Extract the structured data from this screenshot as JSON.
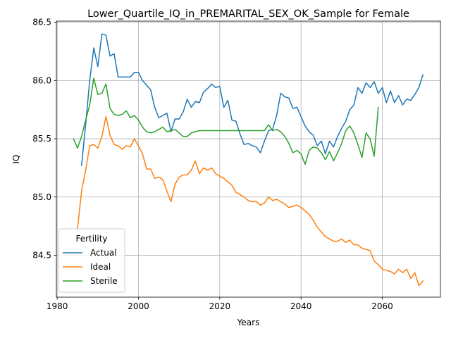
{
  "chart_data": {
    "type": "line",
    "title": "Lower_Quartile_IQ_in_PREMARITAL_SEX_OK_Sample for Female",
    "xlabel": "Years",
    "ylabel": "IQ",
    "xlim": [
      1979.8,
      2074.3
    ],
    "ylim": [
      84.14,
      86.51
    ],
    "xticks": [
      1980,
      2000,
      2020,
      2040,
      2060
    ],
    "yticks": [
      84.5,
      85.0,
      85.5,
      86.0,
      86.5
    ],
    "ytick_labels": [
      "84.5",
      "85.0",
      "85.5",
      "86.0",
      "86.5"
    ],
    "grid": true,
    "legend": {
      "title": "Fertility",
      "placement": "lower-left"
    },
    "series": [
      {
        "name": "Actual",
        "color": "#1f77b4",
        "x": [
          1986,
          1987,
          1988,
          1989,
          1990,
          1991,
          1992,
          1993,
          1994,
          1995,
          1996,
          1997,
          1998,
          1999,
          2000,
          2001,
          2002,
          2003,
          2004,
          2005,
          2006,
          2007,
          2008,
          2009,
          2010,
          2011,
          2012,
          2013,
          2014,
          2015,
          2016,
          2017,
          2018,
          2019,
          2020,
          2021,
          2022,
          2023,
          2024,
          2025,
          2026,
          2027,
          2028,
          2029,
          2030,
          2031,
          2032,
          2033,
          2034,
          2035,
          2036,
          2037,
          2038,
          2039,
          2040,
          2041,
          2042,
          2043,
          2044,
          2045,
          2046,
          2047,
          2048,
          2049,
          2050,
          2051,
          2052,
          2053,
          2054,
          2055,
          2056,
          2057,
          2058,
          2059,
          2060,
          2061,
          2062,
          2063,
          2064,
          2065,
          2066,
          2067,
          2068,
          2069,
          2070
        ],
        "y": [
          85.27,
          85.62,
          86.0,
          86.28,
          86.12,
          86.4,
          86.39,
          86.21,
          86.23,
          86.03,
          86.03,
          86.03,
          86.03,
          86.07,
          86.07,
          86.0,
          85.96,
          85.92,
          85.77,
          85.68,
          85.7,
          85.72,
          85.56,
          85.67,
          85.67,
          85.73,
          85.84,
          85.77,
          85.82,
          85.81,
          85.9,
          85.93,
          85.97,
          85.94,
          85.95,
          85.77,
          85.83,
          85.66,
          85.65,
          85.54,
          85.45,
          85.46,
          85.44,
          85.43,
          85.38,
          85.48,
          85.57,
          85.58,
          85.7,
          85.89,
          85.86,
          85.85,
          85.76,
          85.77,
          85.69,
          85.61,
          85.56,
          85.53,
          85.44,
          85.48,
          85.37,
          85.48,
          85.43,
          85.52,
          85.59,
          85.65,
          85.75,
          85.79,
          85.94,
          85.89,
          85.98,
          85.94,
          85.99,
          85.89,
          85.94,
          85.81,
          85.91,
          85.81,
          85.87,
          85.79,
          85.84,
          85.83,
          85.88,
          85.94,
          86.05
        ]
      },
      {
        "name": "Ideal",
        "color": "#ff7f0e",
        "x": [
          1985,
          1986,
          1987,
          1988,
          1989,
          1990,
          1991,
          1992,
          1993,
          1994,
          1995,
          1996,
          1997,
          1998,
          1999,
          2000,
          2001,
          2002,
          2003,
          2004,
          2005,
          2006,
          2007,
          2008,
          2009,
          2010,
          2011,
          2012,
          2013,
          2014,
          2015,
          2016,
          2017,
          2018,
          2019,
          2020,
          2021,
          2022,
          2023,
          2024,
          2025,
          2026,
          2027,
          2028,
          2029,
          2030,
          2031,
          2032,
          2033,
          2034,
          2035,
          2036,
          2037,
          2038,
          2039,
          2040,
          2041,
          2042,
          2043,
          2044,
          2045,
          2046,
          2047,
          2048,
          2049,
          2050,
          2051,
          2052,
          2053,
          2054,
          2055,
          2056,
          2057,
          2058,
          2059,
          2060,
          2061,
          2062,
          2063,
          2064,
          2065,
          2066,
          2067,
          2068,
          2069,
          2070
        ],
        "y": [
          84.73,
          85.05,
          85.23,
          85.44,
          85.45,
          85.42,
          85.52,
          85.69,
          85.53,
          85.45,
          85.44,
          85.41,
          85.44,
          85.43,
          85.5,
          85.44,
          85.37,
          85.24,
          85.24,
          85.16,
          85.17,
          85.15,
          85.05,
          84.96,
          85.11,
          85.17,
          85.19,
          85.19,
          85.23,
          85.31,
          85.2,
          85.25,
          85.23,
          85.25,
          85.2,
          85.18,
          85.16,
          85.13,
          85.1,
          85.04,
          85.02,
          85.0,
          84.97,
          84.96,
          84.96,
          84.93,
          84.95,
          85.0,
          84.97,
          84.98,
          84.96,
          84.94,
          84.91,
          84.92,
          84.93,
          84.91,
          84.88,
          84.85,
          84.8,
          84.74,
          84.7,
          84.66,
          84.64,
          84.62,
          84.62,
          84.64,
          84.61,
          84.63,
          84.59,
          84.59,
          84.56,
          84.55,
          84.54,
          84.45,
          84.42,
          84.38,
          84.37,
          84.36,
          84.34,
          84.38,
          84.35,
          84.38,
          84.3,
          84.35,
          84.24,
          84.28
        ]
      },
      {
        "name": "Sterile",
        "color": "#2ca02c",
        "x": [
          1984,
          1985,
          1986,
          1987,
          1988,
          1989,
          1990,
          1991,
          1992,
          1993,
          1994,
          1995,
          1996,
          1997,
          1998,
          1999,
          2000,
          2001,
          2002,
          2003,
          2004,
          2005,
          2006,
          2007,
          2008,
          2009,
          2010,
          2011,
          2012,
          2013,
          2014,
          2015,
          2016,
          2017,
          2018,
          2019,
          2020,
          2021,
          2022,
          2023,
          2024,
          2025,
          2026,
          2027,
          2028,
          2029,
          2030,
          2031,
          2032,
          2033,
          2034,
          2035,
          2036,
          2037,
          2038,
          2039,
          2040,
          2041,
          2042,
          2043,
          2044,
          2045,
          2046,
          2047,
          2048,
          2049,
          2050,
          2051,
          2052,
          2053,
          2054,
          2055,
          2056,
          2057,
          2058,
          2059
        ],
        "y": [
          85.5,
          85.42,
          85.52,
          85.66,
          85.79,
          86.02,
          85.88,
          85.89,
          85.97,
          85.76,
          85.71,
          85.7,
          85.71,
          85.74,
          85.68,
          85.7,
          85.66,
          85.6,
          85.56,
          85.55,
          85.56,
          85.58,
          85.6,
          85.56,
          85.57,
          85.58,
          85.55,
          85.52,
          85.52,
          85.55,
          85.56,
          85.57,
          85.57,
          85.57,
          85.57,
          85.57,
          85.57,
          85.57,
          85.57,
          85.57,
          85.57,
          85.57,
          85.57,
          85.57,
          85.57,
          85.57,
          85.57,
          85.57,
          85.62,
          85.57,
          85.58,
          85.56,
          85.52,
          85.46,
          85.38,
          85.4,
          85.37,
          85.28,
          85.4,
          85.43,
          85.42,
          85.38,
          85.32,
          85.39,
          85.31,
          85.38,
          85.46,
          85.57,
          85.61,
          85.55,
          85.45,
          85.34,
          85.55,
          85.5,
          85.35,
          85.77
        ]
      }
    ]
  }
}
